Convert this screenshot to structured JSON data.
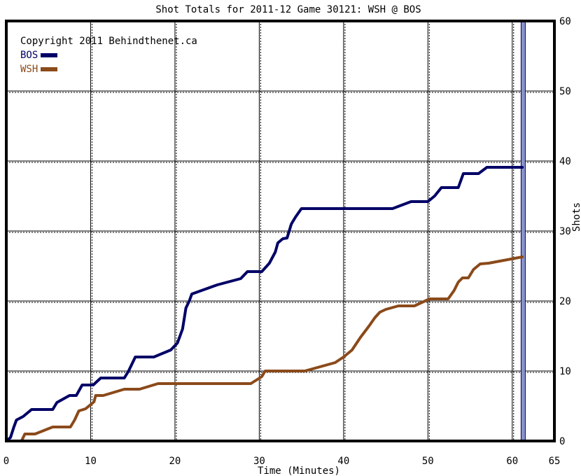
{
  "chart_data": {
    "type": "line",
    "title": "Shot Totals for 2011-12 Game 30121: WSH @ BOS",
    "xlabel": "Time (Minutes)",
    "ylabel": "Shots",
    "copyright": "Copyright 2011 Behindthenet.ca",
    "xlim": [
      0,
      65
    ],
    "ylim": [
      0,
      60
    ],
    "xticks": [
      0,
      10,
      20,
      30,
      40,
      50,
      60,
      65
    ],
    "yticks": [
      0,
      10,
      20,
      30,
      40,
      50,
      60
    ],
    "grid": true,
    "legend_position": "top-left",
    "period_markers": [
      60,
      61.3
    ],
    "series": [
      {
        "name": "BOS",
        "color": "#000066",
        "points": [
          [
            0,
            0
          ],
          [
            0.5,
            0.5
          ],
          [
            0.9,
            2
          ],
          [
            1.2,
            3
          ],
          [
            2,
            3.5
          ],
          [
            3,
            4.5
          ],
          [
            5.5,
            4.5
          ],
          [
            6,
            5.5
          ],
          [
            7.5,
            6.5
          ],
          [
            8.3,
            6.5
          ],
          [
            9,
            8
          ],
          [
            10.3,
            8
          ],
          [
            11.2,
            9
          ],
          [
            14,
            9
          ],
          [
            14.5,
            10
          ],
          [
            15.3,
            12
          ],
          [
            17.5,
            12
          ],
          [
            19.5,
            13
          ],
          [
            20.3,
            14
          ],
          [
            20.9,
            16
          ],
          [
            21.3,
            19
          ],
          [
            21.7,
            20
          ],
          [
            22,
            21
          ],
          [
            25,
            22.3
          ],
          [
            27.8,
            23.2
          ],
          [
            28.6,
            24.2
          ],
          [
            30.3,
            24.2
          ],
          [
            31.2,
            25.4
          ],
          [
            31.9,
            27
          ],
          [
            32.2,
            28.3
          ],
          [
            32.8,
            28.9
          ],
          [
            33.3,
            29
          ],
          [
            33.8,
            31
          ],
          [
            34.3,
            32
          ],
          [
            35,
            33.2
          ],
          [
            45.8,
            33.2
          ],
          [
            48,
            34.2
          ],
          [
            50,
            34.2
          ],
          [
            50.8,
            35
          ],
          [
            51.6,
            36.2
          ],
          [
            53.6,
            36.2
          ],
          [
            54.2,
            38.2
          ],
          [
            56,
            38.2
          ],
          [
            57,
            39.1
          ],
          [
            61.2,
            39.1
          ]
        ]
      },
      {
        "name": "WSH",
        "color": "#8b4a1a",
        "points": [
          [
            0,
            0
          ],
          [
            1.8,
            0
          ],
          [
            2.2,
            1
          ],
          [
            3.4,
            1
          ],
          [
            5.5,
            2
          ],
          [
            7.6,
            2
          ],
          [
            8.1,
            3
          ],
          [
            8.6,
            4.3
          ],
          [
            9.4,
            4.6
          ],
          [
            10,
            5.2
          ],
          [
            10.4,
            5.6
          ],
          [
            10.6,
            6.5
          ],
          [
            11.5,
            6.5
          ],
          [
            14,
            7.4
          ],
          [
            15.8,
            7.4
          ],
          [
            18,
            8.2
          ],
          [
            29,
            8.2
          ],
          [
            30.3,
            9.2
          ],
          [
            30.7,
            10
          ],
          [
            35.4,
            10
          ],
          [
            39,
            11.2
          ],
          [
            40,
            12
          ],
          [
            41,
            13
          ],
          [
            42,
            14.8
          ],
          [
            43,
            16.4
          ],
          [
            43.7,
            17.6
          ],
          [
            44.3,
            18.4
          ],
          [
            45,
            18.8
          ],
          [
            46.5,
            19.3
          ],
          [
            48.4,
            19.3
          ],
          [
            50.2,
            20.3
          ],
          [
            52.4,
            20.3
          ],
          [
            53.1,
            21.5
          ],
          [
            53.6,
            22.7
          ],
          [
            54.1,
            23.3
          ],
          [
            54.8,
            23.3
          ],
          [
            55.4,
            24.5
          ],
          [
            56.2,
            25.3
          ],
          [
            57.2,
            25.4
          ],
          [
            61.2,
            26.3
          ]
        ]
      }
    ]
  }
}
